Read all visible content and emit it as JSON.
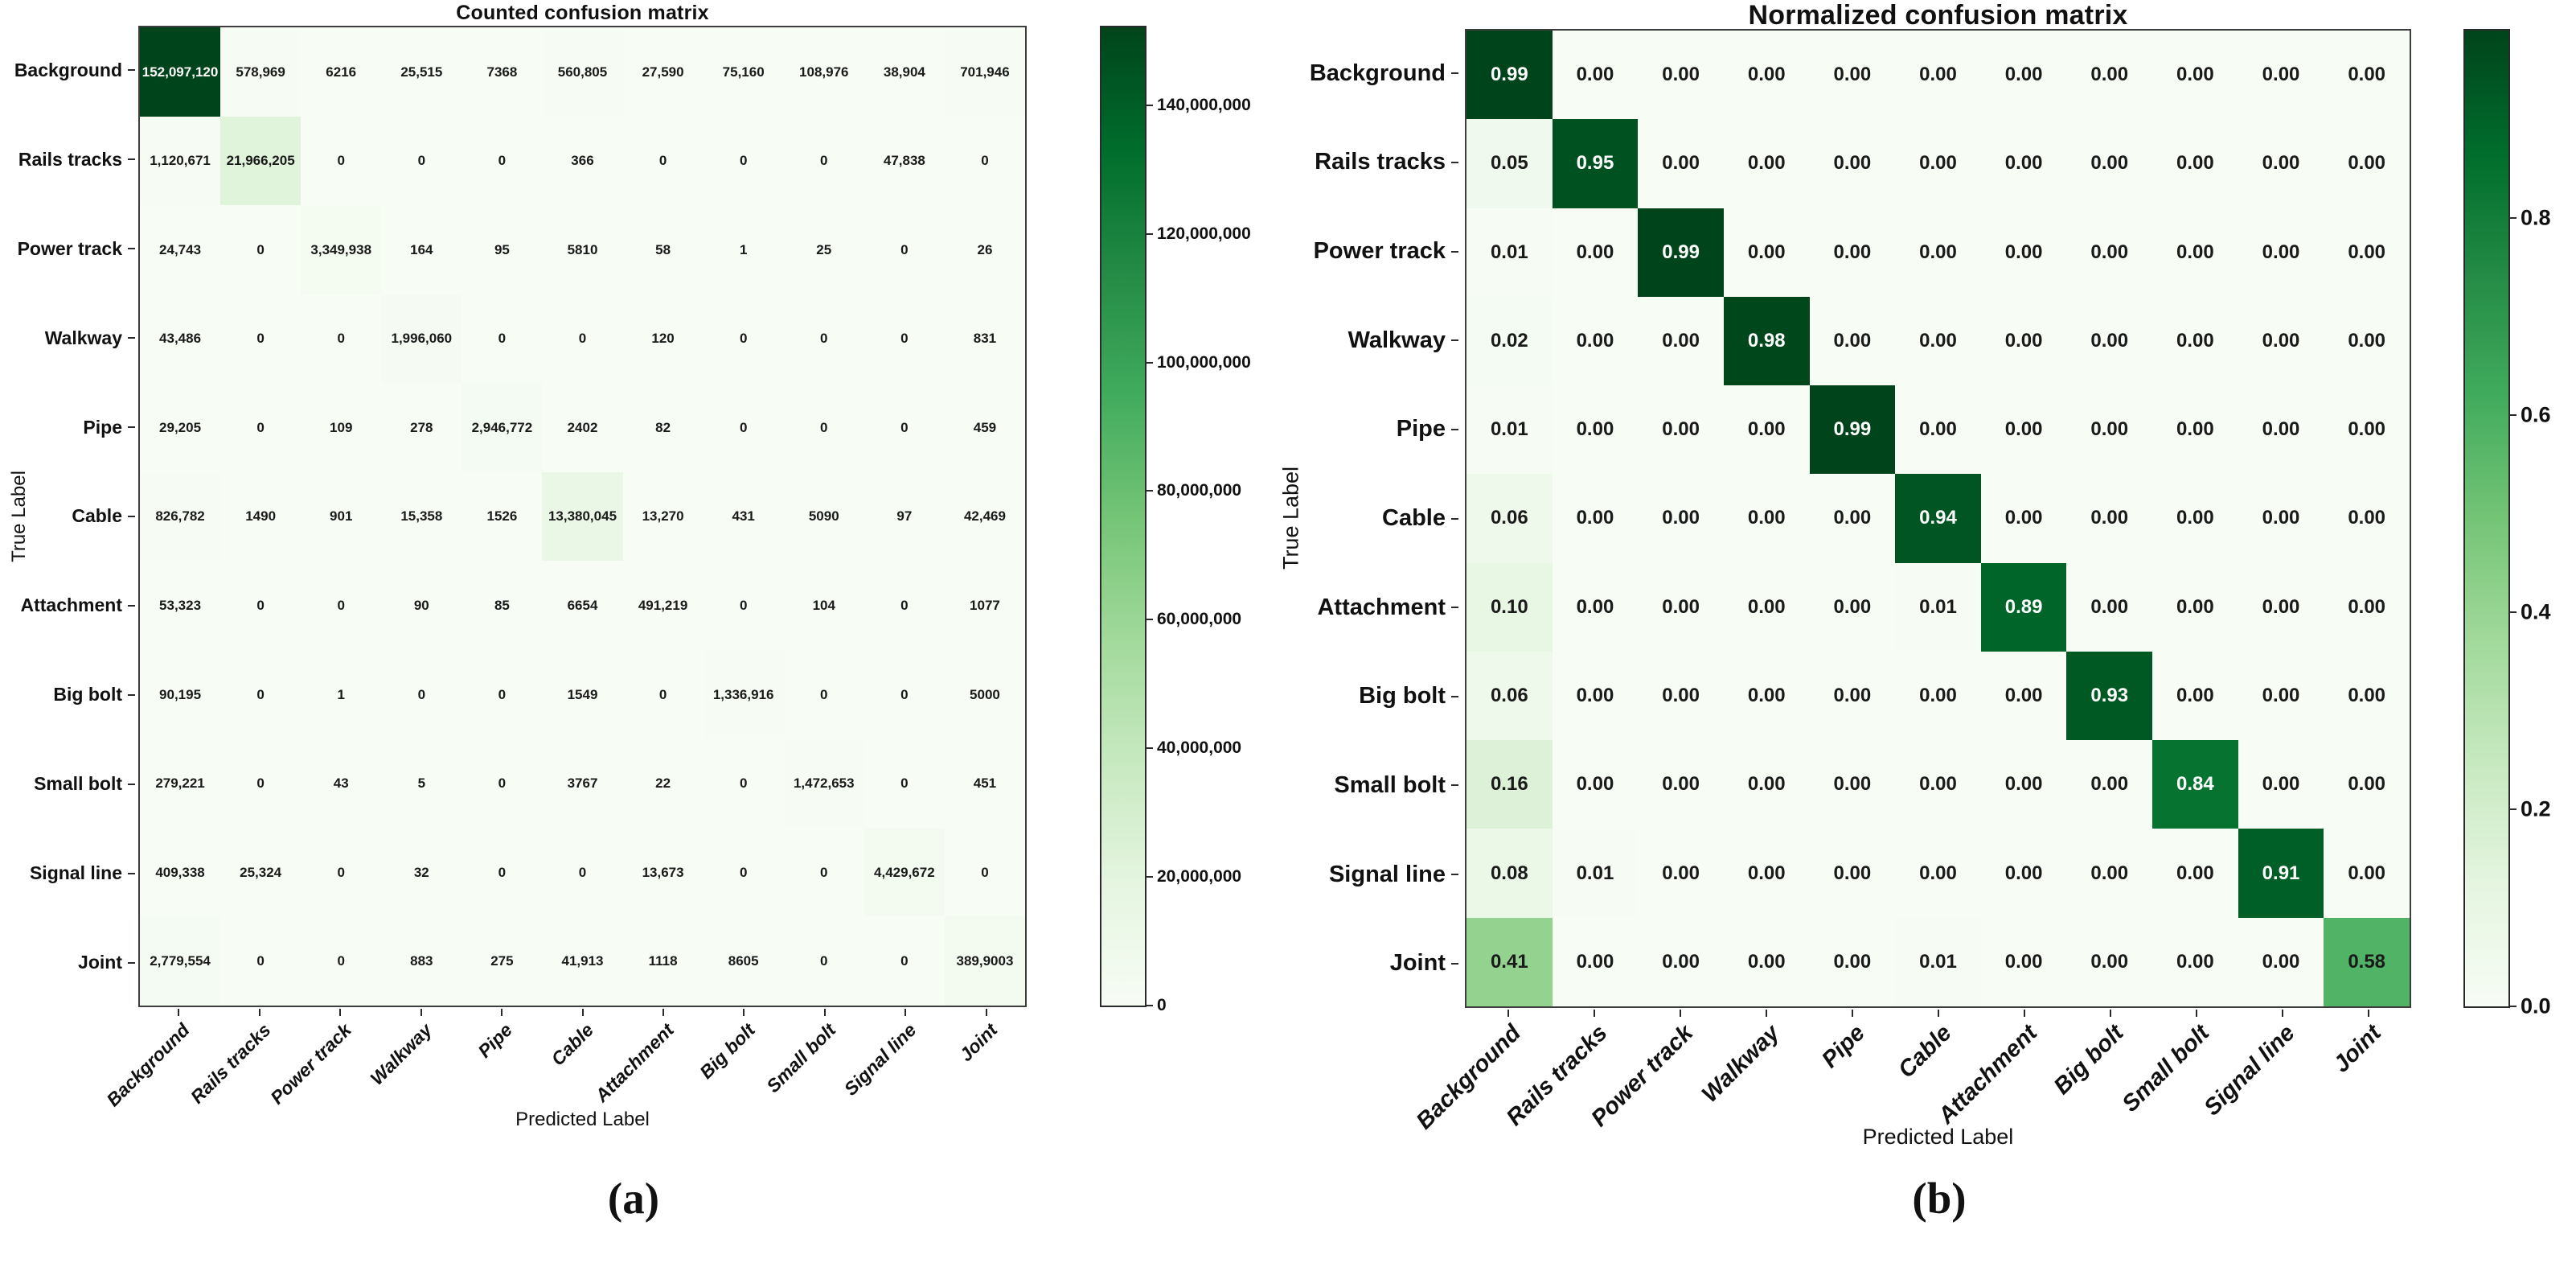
{
  "colors": {
    "background": "#ffffff",
    "axis_border": "#3d3d3d",
    "tick": "#2a2a2a",
    "cell_text_dark": "#1a1a1a",
    "cell_text_light": "#ffffff",
    "colormap_greens": [
      "#f7fcf5",
      "#e5f5e0",
      "#c7e9c0",
      "#a1d99b",
      "#74c476",
      "#41ab5d",
      "#238b45",
      "#006d2c",
      "#00441b"
    ]
  },
  "chart_data": [
    {
      "type": "heatmap",
      "title": "Counted confusion matrix",
      "xlabel": "Predicted Label",
      "ylabel": "True Label",
      "caption": "(a)",
      "legend_position": "right-colorbar",
      "categories": [
        "Background",
        "Rails tracks",
        "Power track",
        "Walkway",
        "Pipe",
        "Cable",
        "Attachment",
        "Big bolt",
        "Small bolt",
        "Signal line",
        "Joint"
      ],
      "vmin": 0,
      "vmax": 152097120,
      "values": [
        [
          152097120,
          578969,
          6216,
          25515,
          7368,
          560805,
          27590,
          75160,
          108976,
          38904,
          701946
        ],
        [
          1120671,
          21966205,
          0,
          0,
          0,
          366,
          0,
          0,
          0,
          47838,
          0
        ],
        [
          24743,
          0,
          3349938,
          164,
          95,
          5810,
          58,
          1,
          25,
          0,
          26
        ],
        [
          43486,
          0,
          0,
          1996060,
          0,
          0,
          120,
          0,
          0,
          0,
          831
        ],
        [
          29205,
          0,
          109,
          278,
          2946772,
          2402,
          82,
          0,
          0,
          0,
          459
        ],
        [
          826782,
          1490,
          901,
          15358,
          1526,
          13380045,
          13270,
          431,
          5090,
          97,
          42469
        ],
        [
          53323,
          0,
          0,
          90,
          85,
          6654,
          491219,
          0,
          104,
          0,
          1077
        ],
        [
          90195,
          0,
          1,
          0,
          0,
          1549,
          0,
          1336916,
          0,
          0,
          5000
        ],
        [
          279221,
          0,
          43,
          5,
          0,
          3767,
          22,
          0,
          1472653,
          0,
          451
        ],
        [
          409338,
          25324,
          0,
          32,
          0,
          0,
          13673,
          0,
          0,
          4429672,
          0
        ],
        [
          2779554,
          0,
          0,
          883,
          275,
          41913,
          1118,
          8605,
          0,
          0,
          3899003
        ]
      ],
      "display": [
        [
          "152,097,120",
          "578,969",
          "6216",
          "25,515",
          "7368",
          "560,805",
          "27,590",
          "75,160",
          "108,976",
          "38,904",
          "701,946"
        ],
        [
          "1,120,671",
          "21,966,205",
          "0",
          "0",
          "0",
          "366",
          "0",
          "0",
          "0",
          "47,838",
          "0"
        ],
        [
          "24,743",
          "0",
          "3,349,938",
          "164",
          "95",
          "5810",
          "58",
          "1",
          "25",
          "0",
          "26"
        ],
        [
          "43,486",
          "0",
          "0",
          "1,996,060",
          "0",
          "0",
          "120",
          "0",
          "0",
          "0",
          "831"
        ],
        [
          "29,205",
          "0",
          "109",
          "278",
          "2,946,772",
          "2402",
          "82",
          "0",
          "0",
          "0",
          "459"
        ],
        [
          "826,782",
          "1490",
          "901",
          "15,358",
          "1526",
          "13,380,045",
          "13,270",
          "431",
          "5090",
          "97",
          "42,469"
        ],
        [
          "53,323",
          "0",
          "0",
          "90",
          "85",
          "6654",
          "491,219",
          "0",
          "104",
          "0",
          "1077"
        ],
        [
          "90,195",
          "0",
          "1",
          "0",
          "0",
          "1549",
          "0",
          "1,336,916",
          "0",
          "0",
          "5000"
        ],
        [
          "279,221",
          "0",
          "43",
          "5",
          "0",
          "3767",
          "22",
          "0",
          "1,472,653",
          "0",
          "451"
        ],
        [
          "409,338",
          "25,324",
          "0",
          "32",
          "0",
          "0",
          "13,673",
          "0",
          "0",
          "4,429,672",
          "0"
        ],
        [
          "2,779,554",
          "0",
          "0",
          "883",
          "275",
          "41,913",
          "1118",
          "8605",
          "0",
          "0",
          "389,9003"
        ]
      ],
      "colorbar_ticks": [
        {
          "value": 140000000,
          "label": "140,000,000"
        },
        {
          "value": 120000000,
          "label": "120,000,000"
        },
        {
          "value": 100000000,
          "label": "100,000,000"
        },
        {
          "value": 80000000,
          "label": "80,000,000"
        },
        {
          "value": 60000000,
          "label": "60,000,000"
        },
        {
          "value": 40000000,
          "label": "40,000,000"
        },
        {
          "value": 20000000,
          "label": "20,000,000"
        },
        {
          "value": 0,
          "label": "0"
        }
      ]
    },
    {
      "type": "heatmap",
      "title": "Normalized confusion matrix",
      "xlabel": "Predicted Label",
      "ylabel": "True Label",
      "caption": "(b)",
      "legend_position": "right-colorbar",
      "categories": [
        "Background",
        "Rails tracks",
        "Power track",
        "Walkway",
        "Pipe",
        "Cable",
        "Attachment",
        "Big bolt",
        "Small bolt",
        "Signal line",
        "Joint"
      ],
      "vmin": 0,
      "vmax": 0.99,
      "values": [
        [
          0.99,
          0.0,
          0.0,
          0.0,
          0.0,
          0.0,
          0.0,
          0.0,
          0.0,
          0.0,
          0.0
        ],
        [
          0.05,
          0.95,
          0.0,
          0.0,
          0.0,
          0.0,
          0.0,
          0.0,
          0.0,
          0.0,
          0.0
        ],
        [
          0.01,
          0.0,
          0.99,
          0.0,
          0.0,
          0.0,
          0.0,
          0.0,
          0.0,
          0.0,
          0.0
        ],
        [
          0.02,
          0.0,
          0.0,
          0.98,
          0.0,
          0.0,
          0.0,
          0.0,
          0.0,
          0.0,
          0.0
        ],
        [
          0.01,
          0.0,
          0.0,
          0.0,
          0.99,
          0.0,
          0.0,
          0.0,
          0.0,
          0.0,
          0.0
        ],
        [
          0.06,
          0.0,
          0.0,
          0.0,
          0.0,
          0.94,
          0.0,
          0.0,
          0.0,
          0.0,
          0.0
        ],
        [
          0.1,
          0.0,
          0.0,
          0.0,
          0.0,
          0.01,
          0.89,
          0.0,
          0.0,
          0.0,
          0.0
        ],
        [
          0.06,
          0.0,
          0.0,
          0.0,
          0.0,
          0.0,
          0.0,
          0.93,
          0.0,
          0.0,
          0.0
        ],
        [
          0.16,
          0.0,
          0.0,
          0.0,
          0.0,
          0.0,
          0.0,
          0.0,
          0.84,
          0.0,
          0.0
        ],
        [
          0.08,
          0.01,
          0.0,
          0.0,
          0.0,
          0.0,
          0.0,
          0.0,
          0.0,
          0.91,
          0.0
        ],
        [
          0.41,
          0.0,
          0.0,
          0.0,
          0.0,
          0.01,
          0.0,
          0.0,
          0.0,
          0.0,
          0.58
        ]
      ],
      "display": [
        [
          "0.99",
          "0.00",
          "0.00",
          "0.00",
          "0.00",
          "0.00",
          "0.00",
          "0.00",
          "0.00",
          "0.00",
          "0.00"
        ],
        [
          "0.05",
          "0.95",
          "0.00",
          "0.00",
          "0.00",
          "0.00",
          "0.00",
          "0.00",
          "0.00",
          "0.00",
          "0.00"
        ],
        [
          "0.01",
          "0.00",
          "0.99",
          "0.00",
          "0.00",
          "0.00",
          "0.00",
          "0.00",
          "0.00",
          "0.00",
          "0.00"
        ],
        [
          "0.02",
          "0.00",
          "0.00",
          "0.98",
          "0.00",
          "0.00",
          "0.00",
          "0.00",
          "0.00",
          "0.00",
          "0.00"
        ],
        [
          "0.01",
          "0.00",
          "0.00",
          "0.00",
          "0.99",
          "0.00",
          "0.00",
          "0.00",
          "0.00",
          "0.00",
          "0.00"
        ],
        [
          "0.06",
          "0.00",
          "0.00",
          "0.00",
          "0.00",
          "0.94",
          "0.00",
          "0.00",
          "0.00",
          "0.00",
          "0.00"
        ],
        [
          "0.10",
          "0.00",
          "0.00",
          "0.00",
          "0.00",
          "0.01",
          "0.89",
          "0.00",
          "0.00",
          "0.00",
          "0.00"
        ],
        [
          "0.06",
          "0.00",
          "0.00",
          "0.00",
          "0.00",
          "0.00",
          "0.00",
          "0.93",
          "0.00",
          "0.00",
          "0.00"
        ],
        [
          "0.16",
          "0.00",
          "0.00",
          "0.00",
          "0.00",
          "0.00",
          "0.00",
          "0.00",
          "0.84",
          "0.00",
          "0.00"
        ],
        [
          "0.08",
          "0.01",
          "0.00",
          "0.00",
          "0.00",
          "0.00",
          "0.00",
          "0.00",
          "0.00",
          "0.91",
          "0.00"
        ],
        [
          "0.41",
          "0.00",
          "0.00",
          "0.00",
          "0.00",
          "0.01",
          "0.00",
          "0.00",
          "0.00",
          "0.00",
          "0.58"
        ]
      ],
      "colorbar_ticks": [
        {
          "value": 0.8,
          "label": "0.8"
        },
        {
          "value": 0.6,
          "label": "0.6"
        },
        {
          "value": 0.4,
          "label": "0.4"
        },
        {
          "value": 0.2,
          "label": "0.2"
        },
        {
          "value": 0.0,
          "label": "0.0"
        }
      ]
    }
  ]
}
